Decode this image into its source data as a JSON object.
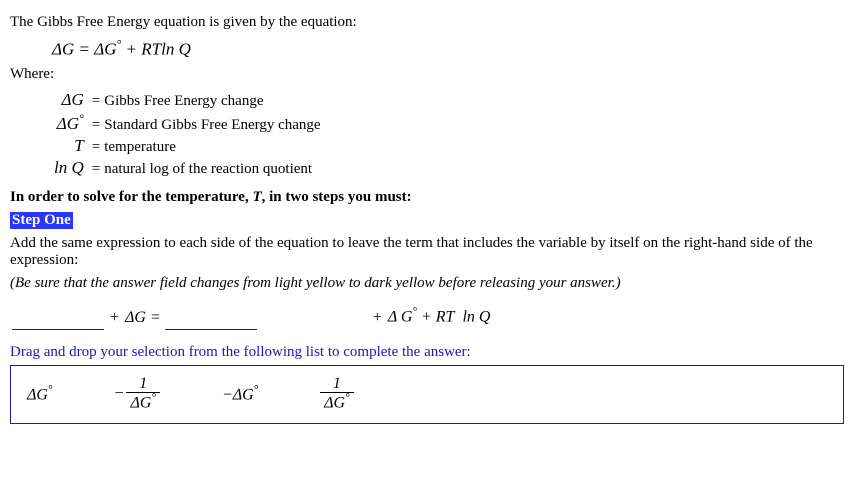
{
  "intro": "The Gibbs Free Energy equation is given by the equation:",
  "equation": "ΔG = ΔG° + RT ln Q",
  "where_label": "Where:",
  "defs": [
    {
      "sym": "ΔG",
      "desc": "Gibbs Free Energy change"
    },
    {
      "sym": "ΔG°",
      "desc": "Standard Gibbs Free Energy change"
    },
    {
      "sym": "T",
      "desc": "temperature"
    },
    {
      "sym": "ln Q",
      "desc": "natural log of the reaction quotient"
    }
  ],
  "solve_line_a": "In order to solve for the temperature, ",
  "solve_line_var": "T",
  "solve_line_b": ", in two steps you must:",
  "step_label": "Step One",
  "step_text": "Add the same expression to each side of the equation to leave the term that includes the variable by itself on the right-hand side of the expression:",
  "hint": "(Be sure that the answer field changes from light yellow to dark yellow before releasing your answer.)",
  "eq_row": {
    "plus1": "+",
    "mid": "ΔG =",
    "plus2": "+",
    "right": "Δ G° + RT  ln Q"
  },
  "drag_instr": "Drag and drop your selection from the following list to complete the answer:",
  "choices": {
    "c1": "ΔG°",
    "c2_num": "1",
    "c2_den": "ΔG°",
    "c3": "−ΔG°",
    "c4_num": "1",
    "c4_den": "ΔG°"
  },
  "colors": {
    "link_blue": "#1818b8",
    "highlight_bg": "#2a36ff"
  }
}
